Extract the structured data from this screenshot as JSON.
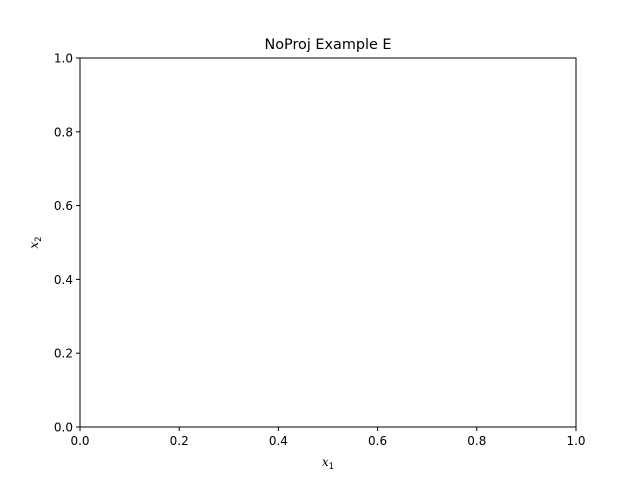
{
  "chart_data": {
    "type": "scatter",
    "title": "NoProj Example E",
    "xlabel": {
      "base": "x",
      "sub": "1"
    },
    "ylabel": {
      "base": "x",
      "sub": "2"
    },
    "xlim": [
      0.0,
      1.0
    ],
    "ylim": [
      0.0,
      1.0
    ],
    "xticks": [
      0.0,
      0.2,
      0.4,
      0.6,
      0.8,
      1.0
    ],
    "yticks": [
      0.0,
      0.2,
      0.4,
      0.6,
      0.8,
      1.0
    ],
    "xtick_labels": [
      "0.0",
      "0.2",
      "0.4",
      "0.6",
      "0.8",
      "1.0"
    ],
    "ytick_labels": [
      "0.0",
      "0.2",
      "0.4",
      "0.6",
      "0.8",
      "1.0"
    ],
    "grid": false,
    "series": []
  }
}
